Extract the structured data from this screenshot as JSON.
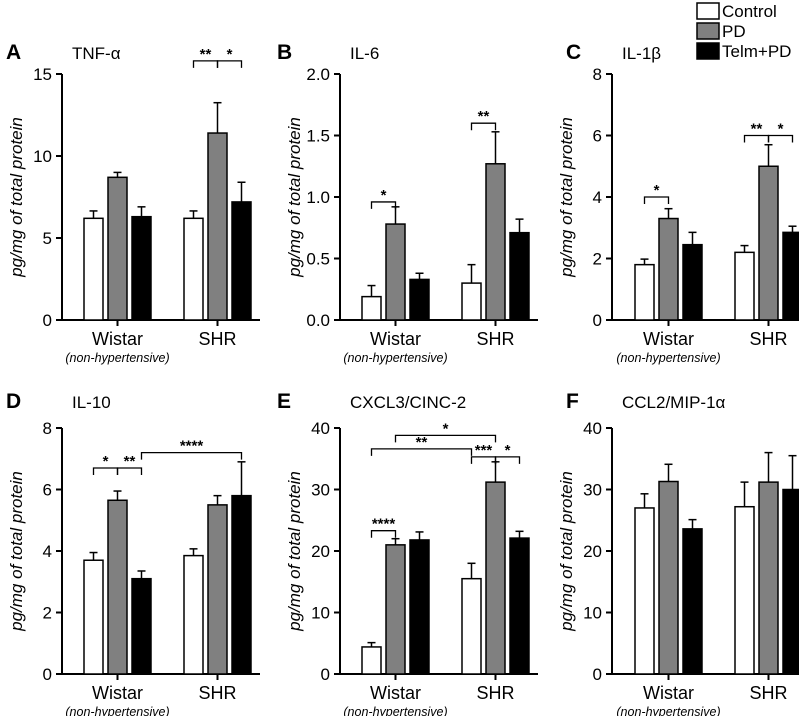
{
  "legend": {
    "entries": [
      {
        "label": "Control",
        "color": "#ffffff"
      },
      {
        "label": "PD",
        "color": "#808080"
      },
      {
        "label": "Telm+PD",
        "color": "#000000"
      }
    ],
    "placement": "top-right"
  },
  "colors": {
    "control": "#ffffff",
    "pd": "#808080",
    "telm": "#000000",
    "stroke": "#000000"
  },
  "chart_data": [
    {
      "panel": "A",
      "title": "TNF-α",
      "type": "bar",
      "ylabel": "pg/mg of total protein",
      "ylim": [
        0,
        15
      ],
      "yticks": [
        "0",
        "5",
        "10",
        "15"
      ],
      "categories": [
        "Wistar",
        "SHR"
      ],
      "category_note": "(non-hypertensive)",
      "series": [
        {
          "name": "Control",
          "values": [
            6.2,
            6.2
          ],
          "errors": [
            0.45,
            0.45
          ]
        },
        {
          "name": "PD",
          "values": [
            8.7,
            11.4
          ],
          "errors": [
            0.3,
            1.85
          ]
        },
        {
          "name": "Telm+PD",
          "values": [
            6.3,
            7.2
          ],
          "errors": [
            0.6,
            1.2
          ]
        }
      ],
      "significance": [
        {
          "group": 1,
          "from": 0,
          "to": 1,
          "y": 15.8,
          "label": "**"
        },
        {
          "group": 1,
          "from": 1,
          "to": 2,
          "y": 15.8,
          "label": "*"
        }
      ]
    },
    {
      "panel": "B",
      "title": "IL-6",
      "type": "bar",
      "ylabel": "pg/mg of total protein",
      "ylim": [
        0,
        2
      ],
      "yticks": [
        "0.0",
        "0.5",
        "1.0",
        "1.5",
        "2.0"
      ],
      "categories": [
        "Wistar",
        "SHR"
      ],
      "category_note": "(non-hypertensive)",
      "series": [
        {
          "name": "Control",
          "values": [
            0.19,
            0.3
          ],
          "errors": [
            0.09,
            0.15
          ]
        },
        {
          "name": "PD",
          "values": [
            0.78,
            1.27
          ],
          "errors": [
            0.14,
            0.26
          ]
        },
        {
          "name": "Telm+PD",
          "values": [
            0.33,
            0.71
          ],
          "errors": [
            0.05,
            0.11
          ]
        }
      ],
      "significance": [
        {
          "group": 0,
          "from": 0,
          "to": 1,
          "y": 0.96,
          "label": "*"
        },
        {
          "group": 1,
          "from": 0,
          "to": 1,
          "y": 1.6,
          "label": "**"
        }
      ]
    },
    {
      "panel": "C",
      "title": "IL-1β",
      "type": "bar",
      "ylabel": "pg/mg of total protein",
      "ylim": [
        0,
        8
      ],
      "yticks": [
        "0",
        "2",
        "4",
        "6",
        "8"
      ],
      "categories": [
        "Wistar",
        "SHR"
      ],
      "category_note": "(non-hypertensive)",
      "series": [
        {
          "name": "Control",
          "values": [
            1.8,
            2.2
          ],
          "errors": [
            0.18,
            0.22
          ]
        },
        {
          "name": "PD",
          "values": [
            3.3,
            5.0
          ],
          "errors": [
            0.32,
            0.7
          ]
        },
        {
          "name": "Telm+PD",
          "values": [
            2.45,
            2.85
          ],
          "errors": [
            0.4,
            0.2
          ]
        }
      ],
      "significance": [
        {
          "group": 0,
          "from": 0,
          "to": 1,
          "y": 4.0,
          "label": "*"
        },
        {
          "group": 1,
          "from": 0,
          "to": 1,
          "y": 6.0,
          "label": "**"
        },
        {
          "group": 1,
          "from": 1,
          "to": 2,
          "y": 6.0,
          "label": "*"
        }
      ]
    },
    {
      "panel": "D",
      "title": "IL-10",
      "type": "bar",
      "ylabel": "pg/mg of total protein",
      "ylim": [
        0,
        8
      ],
      "yticks": [
        "0",
        "2",
        "4",
        "6",
        "8"
      ],
      "categories": [
        "Wistar",
        "SHR"
      ],
      "category_note": "(non-hypertensive)",
      "series": [
        {
          "name": "Control",
          "values": [
            3.7,
            3.85
          ],
          "errors": [
            0.25,
            0.22
          ]
        },
        {
          "name": "PD",
          "values": [
            5.65,
            5.5
          ],
          "errors": [
            0.3,
            0.3
          ]
        },
        {
          "name": "Telm+PD",
          "values": [
            3.1,
            5.8
          ],
          "errors": [
            0.25,
            1.1
          ]
        }
      ],
      "significance": [
        {
          "group": 0,
          "from": 0,
          "to": 1,
          "y": 6.7,
          "label": "*"
        },
        {
          "group": 0,
          "from": 1,
          "to": 2,
          "y": 6.7,
          "label": "**"
        },
        {
          "span": [
            [
              0,
              2
            ],
            [
              1,
              2
            ]
          ],
          "y": 7.2,
          "label": "****"
        }
      ]
    },
    {
      "panel": "E",
      "title": "CXCL3/CINC-2",
      "type": "bar",
      "ylabel": "pg/mg of total protein",
      "ylim": [
        0,
        40
      ],
      "yticks": [
        "0",
        "10",
        "20",
        "30",
        "40"
      ],
      "categories": [
        "Wistar",
        "SHR"
      ],
      "category_note": "(non-hypertensive)",
      "series": [
        {
          "name": "Control",
          "values": [
            4.4,
            15.5
          ],
          "errors": [
            0.7,
            2.5
          ]
        },
        {
          "name": "PD",
          "values": [
            21.0,
            31.2
          ],
          "errors": [
            1.0,
            3.3
          ]
        },
        {
          "name": "Telm+PD",
          "values": [
            21.8,
            22.1
          ],
          "errors": [
            1.3,
            1.1
          ]
        }
      ],
      "significance": [
        {
          "group": 0,
          "from": 0,
          "to": 1,
          "y": 23.3,
          "label": "****"
        },
        {
          "group": 1,
          "from": 0,
          "to": 1,
          "y": 35.3,
          "label": "***"
        },
        {
          "group": 1,
          "from": 1,
          "to": 2,
          "y": 35.3,
          "label": "*"
        },
        {
          "span": [
            [
              0,
              0
            ],
            [
              1,
              0
            ]
          ],
          "y": 36.6,
          "label": "**"
        },
        {
          "span": [
            [
              0,
              1
            ],
            [
              1,
              1
            ]
          ],
          "y": 38.8,
          "label": "*"
        }
      ]
    },
    {
      "panel": "F",
      "title": "CCL2/MIP-1α",
      "type": "bar",
      "ylabel": "pg/mg of total protein",
      "ylim": [
        0,
        40
      ],
      "yticks": [
        "0",
        "10",
        "20",
        "30",
        "40"
      ],
      "categories": [
        "Wistar",
        "SHR"
      ],
      "category_note": "(non-hypertensive)",
      "series": [
        {
          "name": "Control",
          "values": [
            27.0,
            27.2
          ],
          "errors": [
            2.3,
            4.0
          ]
        },
        {
          "name": "PD",
          "values": [
            31.3,
            31.2
          ],
          "errors": [
            2.8,
            4.8
          ]
        },
        {
          "name": "Telm+PD",
          "values": [
            23.6,
            30.0
          ],
          "errors": [
            1.5,
            5.5
          ]
        }
      ],
      "significance": []
    }
  ]
}
